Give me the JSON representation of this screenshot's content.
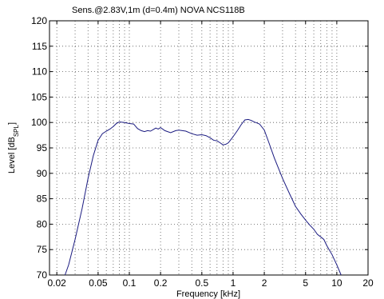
{
  "chart_data": {
    "type": "line",
    "title": "Sens.@2.83V,1m (d=0.4m)    NOVA NCS118B",
    "xlabel": "Frequency [kHz]",
    "ylabel_main": "Level [dB",
    "ylabel_sub": "SPL",
    "ylabel_end": "]",
    "x_scale": "log",
    "xlim": [
      0.017,
      20
    ],
    "ylim": [
      70,
      120
    ],
    "grid": true,
    "x_ticks": [
      {
        "value": 0.02,
        "label": "0.02"
      },
      {
        "value": 0.05,
        "label": "0.05"
      },
      {
        "value": 0.1,
        "label": "0.1"
      },
      {
        "value": 0.2,
        "label": "0.2"
      },
      {
        "value": 0.5,
        "label": "0.5"
      },
      {
        "value": 1,
        "label": "1"
      },
      {
        "value": 2,
        "label": "2"
      },
      {
        "value": 5,
        "label": "5"
      },
      {
        "value": 10,
        "label": "10"
      },
      {
        "value": 20,
        "label": "20"
      }
    ],
    "y_ticks": [
      70,
      75,
      80,
      85,
      90,
      95,
      100,
      105,
      110,
      115,
      120
    ],
    "line_color": "#1a1a80",
    "series": [
      {
        "name": "",
        "x": [
          0.024,
          0.026,
          0.03,
          0.035,
          0.04,
          0.045,
          0.05,
          0.055,
          0.06,
          0.065,
          0.07,
          0.075,
          0.08,
          0.09,
          0.1,
          0.11,
          0.12,
          0.13,
          0.14,
          0.15,
          0.16,
          0.17,
          0.18,
          0.19,
          0.2,
          0.22,
          0.25,
          0.28,
          0.3,
          0.35,
          0.4,
          0.45,
          0.5,
          0.55,
          0.6,
          0.65,
          0.7,
          0.75,
          0.8,
          0.85,
          0.9,
          0.95,
          1.0,
          1.1,
          1.2,
          1.3,
          1.4,
          1.5,
          1.6,
          1.7,
          1.8,
          2.0,
          2.2,
          2.5,
          3.0,
          3.5,
          4.0,
          4.5,
          5.0,
          5.5,
          6.0,
          6.5,
          7.0,
          7.5,
          8.0,
          9.0,
          10.0,
          11.0
        ],
        "y": [
          70.0,
          72.0,
          77.0,
          83.0,
          89.0,
          93.5,
          96.5,
          97.8,
          98.3,
          98.7,
          99.2,
          99.8,
          100.1,
          100.0,
          99.8,
          99.7,
          98.8,
          98.4,
          98.2,
          98.4,
          98.3,
          98.6,
          98.9,
          98.7,
          99.0,
          98.4,
          98.0,
          98.4,
          98.5,
          98.3,
          97.8,
          97.5,
          97.6,
          97.4,
          97.0,
          96.5,
          96.4,
          96.0,
          95.6,
          95.7,
          96.0,
          96.6,
          97.2,
          98.4,
          99.6,
          100.5,
          100.6,
          100.4,
          100.1,
          99.9,
          99.7,
          98.5,
          96.2,
          93.0,
          89.0,
          86.0,
          83.5,
          82.0,
          80.8,
          79.8,
          79.0,
          78.0,
          77.5,
          77.0,
          75.8,
          74.0,
          72.0,
          70.0
        ]
      }
    ]
  }
}
